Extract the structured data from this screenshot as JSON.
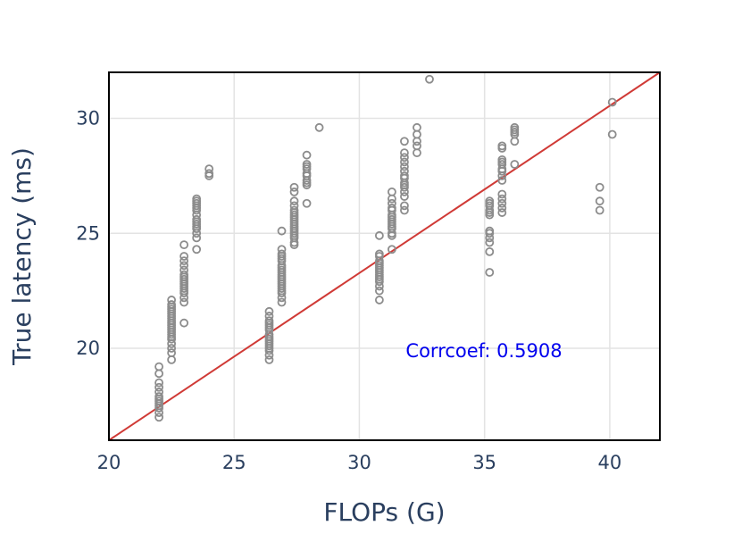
{
  "chart_data": {
    "type": "scatter",
    "xlabel": "FLOPs (G)",
    "ylabel": "True latency (ms)",
    "xlim": [
      20,
      42
    ],
    "ylim": [
      16,
      32
    ],
    "xticks": [
      20,
      25,
      30,
      35,
      40
    ],
    "yticks": [
      20,
      25,
      30
    ],
    "grid": true,
    "marker_color": "#8c8c8c",
    "fit_line": {
      "color": "#d03a36",
      "points": [
        [
          20,
          16
        ],
        [
          42,
          32
        ]
      ]
    },
    "annotation": {
      "text": "Corrcoef: 0.5908",
      "color": "#0000ee"
    },
    "series": [
      {
        "x": [
          22,
          22,
          22,
          22,
          22,
          22,
          22,
          22,
          22,
          22,
          22,
          22,
          22,
          22.5,
          22.5,
          22.5,
          22.5,
          22.5,
          22.5,
          22.5,
          22.5,
          22.5,
          22.5,
          22.5,
          22.5,
          22.5,
          22.5,
          22.5,
          22.5,
          22.5,
          22.5,
          22.5,
          22.5,
          22.5,
          23,
          23,
          23,
          23,
          23,
          23,
          23,
          23,
          23,
          23,
          23,
          23,
          23,
          23,
          23,
          23,
          23,
          23.5,
          23.5,
          23.5,
          23.5,
          23.5,
          23.5,
          23.5,
          23.5,
          23.5,
          23.5,
          23.5,
          23.5,
          23.5,
          23.5,
          23.5,
          24,
          24,
          24,
          26.4,
          26.4,
          26.4,
          26.4,
          26.4,
          26.4,
          26.4,
          26.4,
          26.4,
          26.4,
          26.4,
          26.4,
          26.4,
          26.4,
          26.4,
          26.4,
          26.4,
          26.9,
          26.9,
          26.9,
          26.9,
          26.9,
          26.9,
          26.9,
          26.9,
          26.9,
          26.9,
          26.9,
          26.9,
          26.9,
          26.9,
          26.9,
          26.9,
          26.9,
          26.9,
          26.9,
          26.9,
          26.9,
          27.4,
          27.4,
          27.4,
          27.4,
          27.4,
          27.4,
          27.4,
          27.4,
          27.4,
          27.4,
          27.4,
          27.4,
          27.4,
          27.4,
          27.4,
          27.4,
          27.4,
          27.4,
          27.4,
          27.9,
          27.9,
          27.9,
          27.9,
          27.9,
          27.9,
          27.9,
          27.9,
          27.9,
          27.9,
          28.4,
          30.8,
          30.8,
          30.8,
          30.8,
          30.8,
          30.8,
          30.8,
          30.8,
          30.8,
          30.8,
          30.8,
          30.8,
          30.8,
          30.8,
          30.8,
          30.8,
          31.3,
          31.3,
          31.3,
          31.3,
          31.3,
          31.3,
          31.3,
          31.3,
          31.3,
          31.3,
          31.3,
          31.3,
          31.3,
          31.3,
          31.3,
          31.8,
          31.8,
          31.8,
          31.8,
          31.8,
          31.8,
          31.8,
          31.8,
          31.8,
          31.8,
          31.8,
          31.8,
          31.8,
          31.8,
          31.8,
          32.3,
          32.3,
          32.3,
          32.3,
          32.3,
          32.8,
          35.2,
          35.2,
          35.2,
          35.2,
          35.2,
          35.2,
          35.2,
          35.2,
          35.2,
          35.2,
          35.2,
          35.2,
          35.7,
          35.7,
          35.7,
          35.7,
          35.7,
          35.7,
          35.7,
          35.7,
          35.7,
          35.7,
          35.7,
          35.7,
          35.7,
          35.7,
          36.2,
          36.2,
          36.2,
          36.2,
          36.2,
          36.2,
          39.6,
          39.6,
          39.6,
          40.1,
          40.1
        ],
        "y": [
          17.0,
          17.2,
          17.4,
          17.5,
          17.6,
          17.7,
          17.8,
          17.9,
          18.1,
          18.3,
          18.5,
          18.9,
          19.2,
          19.5,
          19.8,
          20.0,
          20.2,
          20.4,
          20.5,
          20.6,
          20.7,
          20.8,
          20.9,
          21.0,
          21.1,
          21.2,
          21.3,
          21.4,
          21.5,
          21.6,
          21.7,
          21.8,
          21.9,
          22.1,
          21.1,
          22.0,
          22.2,
          22.4,
          22.5,
          22.6,
          22.7,
          22.8,
          22.9,
          23.0,
          23.1,
          23.2,
          23.4,
          23.6,
          23.8,
          24.0,
          24.5,
          24.3,
          24.8,
          25.0,
          25.2,
          25.3,
          25.4,
          25.5,
          25.6,
          25.8,
          26.0,
          26.1,
          26.2,
          26.3,
          26.4,
          26.5,
          27.5,
          27.6,
          27.8,
          19.5,
          19.7,
          19.9,
          20.0,
          20.1,
          20.2,
          20.3,
          20.4,
          20.5,
          20.6,
          20.8,
          20.9,
          21.0,
          21.1,
          21.2,
          21.4,
          21.6,
          22.0,
          22.2,
          22.4,
          22.5,
          22.6,
          22.7,
          22.8,
          22.9,
          23.0,
          23.1,
          23.2,
          23.3,
          23.4,
          23.5,
          23.6,
          23.8,
          23.9,
          24.0,
          24.1,
          24.3,
          25.1,
          24.5,
          24.6,
          24.8,
          24.9,
          25.0,
          25.1,
          25.2,
          25.3,
          25.4,
          25.5,
          25.6,
          25.7,
          25.8,
          25.9,
          26.0,
          26.2,
          26.4,
          26.8,
          27.0,
          26.3,
          27.1,
          27.2,
          27.3,
          27.5,
          27.6,
          27.8,
          27.9,
          28.0,
          28.4,
          29.6,
          22.1,
          22.5,
          22.7,
          22.9,
          23.0,
          23.1,
          23.2,
          23.3,
          23.4,
          23.5,
          23.6,
          23.7,
          23.8,
          24.0,
          24.1,
          24.9,
          24.3,
          24.9,
          25.0,
          25.2,
          25.3,
          25.4,
          25.5,
          25.6,
          25.7,
          25.8,
          26.0,
          26.1,
          26.3,
          26.5,
          26.8,
          26.0,
          26.2,
          26.6,
          26.8,
          27.0,
          27.1,
          27.2,
          27.4,
          27.5,
          27.7,
          27.9,
          28.1,
          28.3,
          28.5,
          29.0,
          28.5,
          28.8,
          29.0,
          29.3,
          29.6,
          31.7,
          23.3,
          24.2,
          24.6,
          24.8,
          25.0,
          25.1,
          25.8,
          25.9,
          26.0,
          26.2,
          26.3,
          26.4,
          25.9,
          26.1,
          26.3,
          26.5,
          26.7,
          27.3,
          27.5,
          27.7,
          27.8,
          28.0,
          28.1,
          28.2,
          28.7,
          28.8,
          28.0,
          29.0,
          29.3,
          29.4,
          29.5,
          29.6,
          26.0,
          26.4,
          27.0,
          29.3,
          30.7
        ]
      }
    ]
  }
}
